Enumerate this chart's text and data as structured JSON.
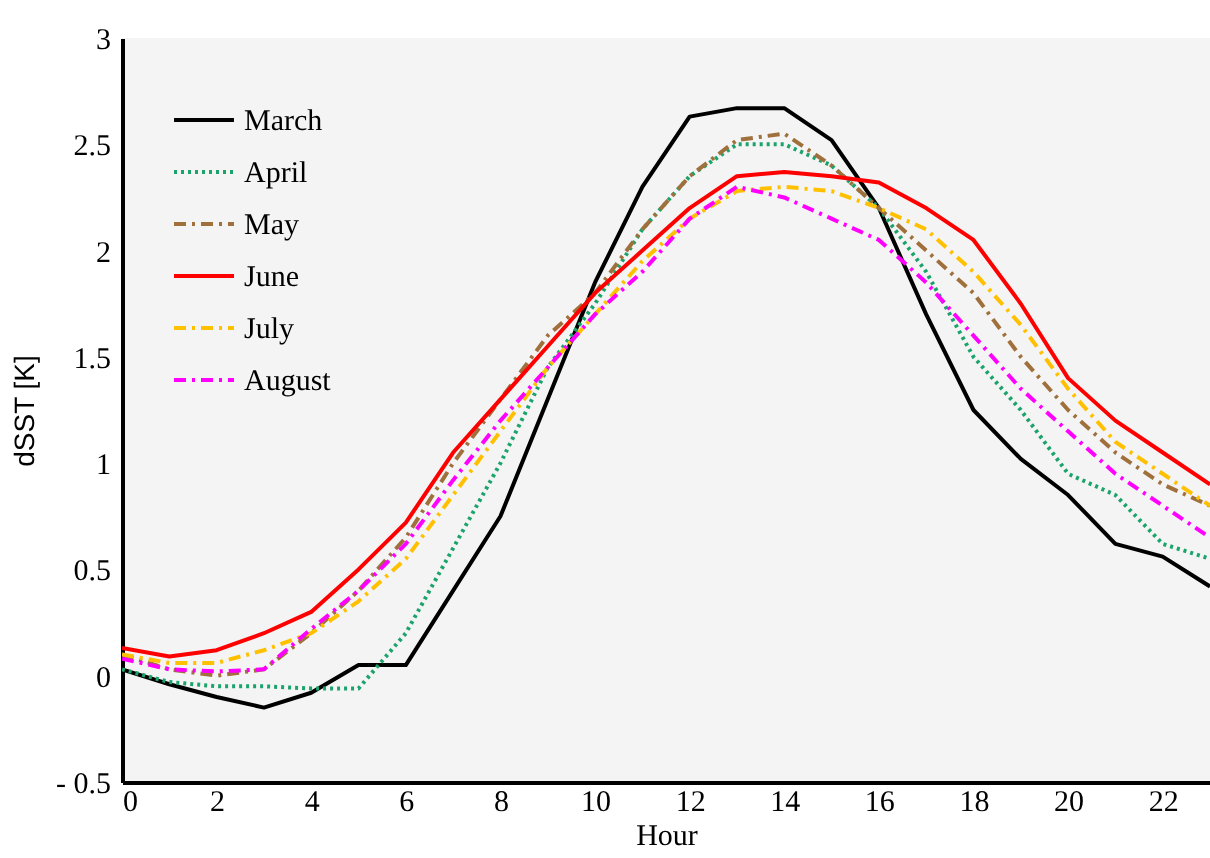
{
  "chart_data": {
    "type": "line",
    "xlabel": "Hour",
    "ylabel": "dSST [K]",
    "x": [
      0,
      1,
      2,
      3,
      4,
      5,
      6,
      7,
      8,
      9,
      10,
      11,
      12,
      13,
      14,
      15,
      16,
      17,
      18,
      19,
      20,
      21,
      22,
      23
    ],
    "xlim": [
      0,
      23
    ],
    "xticks": [
      0,
      2,
      4,
      6,
      8,
      10,
      12,
      14,
      16,
      18,
      20,
      22
    ],
    "ylim": [
      -0.5,
      3
    ],
    "yticks": [
      {
        "value": -0.5,
        "label": "- 0.5"
      },
      0,
      0.5,
      1,
      1.5,
      2,
      2.5,
      3
    ],
    "grid": false,
    "legend": "top left",
    "marker": "none",
    "series": [
      {
        "name": "March",
        "color": "#000000",
        "line_style": "solid",
        "values": [
          0.03,
          -0.04,
          -0.1,
          -0.15,
          -0.08,
          0.05,
          0.05,
          0.4,
          0.75,
          1.3,
          1.85,
          2.3,
          2.63,
          2.67,
          2.67,
          2.52,
          2.2,
          1.7,
          1.25,
          1.02,
          0.85,
          0.62,
          0.56,
          0.42
        ]
      },
      {
        "name": "April",
        "color": "#1aa36a",
        "line_style": "dotted",
        "values": [
          0.03,
          -0.03,
          -0.05,
          -0.05,
          -0.06,
          -0.06,
          0.2,
          0.6,
          1.0,
          1.45,
          1.75,
          2.1,
          2.35,
          2.5,
          2.5,
          2.4,
          2.2,
          1.9,
          1.5,
          1.25,
          0.95,
          0.85,
          0.62,
          0.55
        ]
      },
      {
        "name": "May",
        "color": "#a0703c",
        "line_style": "dashed",
        "values": [
          0.1,
          0.03,
          0.0,
          0.03,
          0.2,
          0.4,
          0.65,
          1.0,
          1.3,
          1.6,
          1.8,
          2.1,
          2.35,
          2.52,
          2.55,
          2.4,
          2.2,
          2.0,
          1.8,
          1.5,
          1.25,
          1.05,
          0.9,
          0.8
        ]
      },
      {
        "name": "June",
        "color": "#ff0000",
        "line_style": "solid",
        "values": [
          0.13,
          0.09,
          0.12,
          0.2,
          0.3,
          0.5,
          0.72,
          1.05,
          1.3,
          1.55,
          1.8,
          2.0,
          2.2,
          2.35,
          2.37,
          2.35,
          2.32,
          2.2,
          2.05,
          1.75,
          1.4,
          1.2,
          1.05,
          0.9
        ]
      },
      {
        "name": "July",
        "color": "#ffc000",
        "line_style": "dashed",
        "values": [
          0.1,
          0.06,
          0.06,
          0.12,
          0.2,
          0.35,
          0.55,
          0.85,
          1.15,
          1.45,
          1.7,
          1.95,
          2.15,
          2.28,
          2.3,
          2.28,
          2.2,
          2.1,
          1.9,
          1.65,
          1.35,
          1.1,
          0.95,
          0.8
        ]
      },
      {
        "name": "August",
        "color": "#ff00ff",
        "line_style": "dashed",
        "values": [
          0.08,
          0.03,
          0.02,
          0.03,
          0.22,
          0.4,
          0.62,
          0.92,
          1.2,
          1.45,
          1.7,
          1.9,
          2.15,
          2.3,
          2.25,
          2.15,
          2.05,
          1.85,
          1.6,
          1.35,
          1.15,
          0.95,
          0.8,
          0.65
        ]
      }
    ]
  }
}
